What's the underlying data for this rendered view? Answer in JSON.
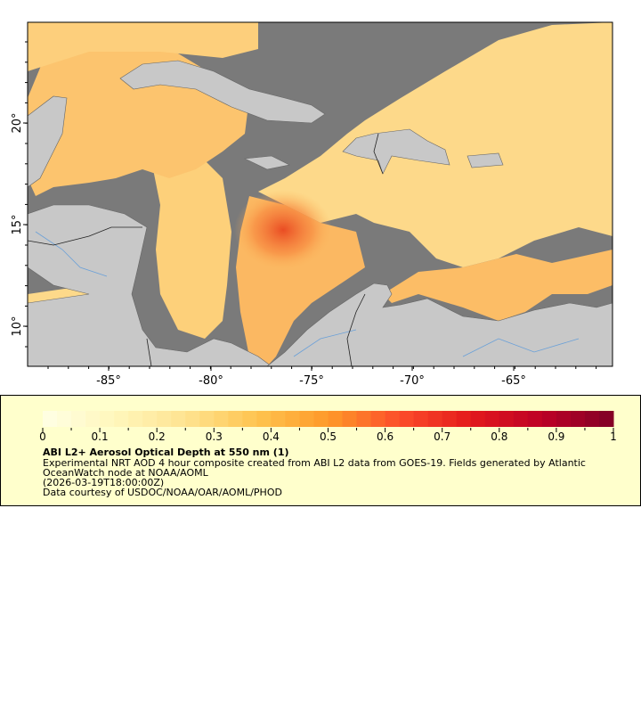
{
  "map": {
    "x_ticks": [
      "-85°",
      "-80°",
      "-75°",
      "-70°",
      "-65°"
    ],
    "y_ticks": [
      "20°",
      "15°",
      "10°"
    ],
    "colors": {
      "cloud_mask": "#7a7a7a",
      "land": "#c8c8c8",
      "rivers": "#6aa0d8",
      "borders": "#555555",
      "frame": "#000000"
    }
  },
  "legend": {
    "colorbar_min": 0,
    "colorbar_max": 1,
    "tick_labels": [
      "0",
      "0.1",
      "0.2",
      "0.3",
      "0.4",
      "0.5",
      "0.6",
      "0.7",
      "0.8",
      "0.9",
      "1"
    ],
    "colorscale": [
      "#ffffe5",
      "#fff7bc",
      "#fee391",
      "#fec44f",
      "#fe9929",
      "#fc4e2a",
      "#e31a1c",
      "#bd0026",
      "#800026"
    ],
    "title": "ABI L2+ Aerosol Optical Depth at 550 nm (1)",
    "description_line1": "Experimental NRT AOD 4 hour composite created from ABI L2 data from GOES-19. Fields generated by Atlantic",
    "description_line2": "OceanWatch node at NOAA/AOML",
    "time": "(2026-03-19T18:00:00Z)",
    "credit": "Data courtesy of USDOC/NOAA/OAR/AOML/PHOD"
  }
}
